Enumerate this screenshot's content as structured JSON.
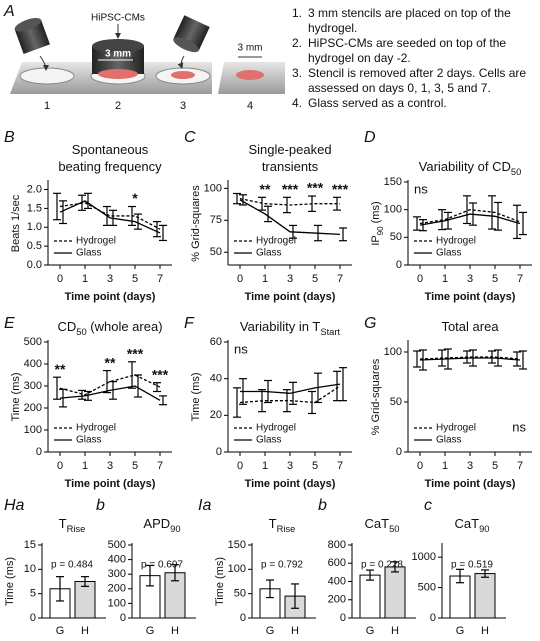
{
  "schematic": {
    "label": "A",
    "cells_label": "HiPSC-CMs",
    "stencil_size": "3 mm",
    "piece_size": "3 mm",
    "dish_numbers": [
      "1",
      "2",
      "3",
      "4"
    ],
    "steps": [
      {
        "number": "1.",
        "text": "3 mm stencils are placed on top of the hydrogel."
      },
      {
        "number": "2.",
        "text": "HiPSC-CMs are seeded on top of the hydrogel on day -2."
      },
      {
        "number": "3.",
        "text": "Stencil is removed after 2 days. Cells are assessed on days 0, 1, 3, 5 and 7."
      },
      {
        "number": "4.",
        "text": "Glass served as a control."
      }
    ]
  },
  "chart_data": [
    {
      "type": "line",
      "label": "B",
      "title": [
        [
          {
            "text": "Spontaneous"
          }
        ],
        [
          {
            "text": "beating frequency"
          }
        ]
      ],
      "ylabel": [
        {
          "text": "Beats 1/sec"
        }
      ],
      "xlabel": "Time point (days)",
      "categories": [
        "0",
        "1",
        "3",
        "5",
        "7"
      ],
      "ylim": [
        0,
        2.2
      ],
      "yticks": [
        {
          "value": 0,
          "label": "0.0"
        },
        {
          "value": 0.5,
          "label": "0.5"
        },
        {
          "value": 1,
          "label": "1.0"
        },
        {
          "value": 1.5,
          "label": "1.5"
        },
        {
          "value": 2,
          "label": "2.0"
        }
      ],
      "legend": "lower left",
      "series": [
        {
          "name": "Hydrogel",
          "color": "#000000",
          "linestyle": "dashed",
          "values": [
            1.55,
            1.65,
            1.3,
            1.3,
            0.95
          ],
          "errors": [
            0.35,
            0.2,
            0.25,
            0.25,
            0.2
          ]
        },
        {
          "name": "Glass",
          "color": "#000000",
          "linestyle": "solid",
          "values": [
            1.4,
            1.7,
            1.25,
            1.15,
            0.85
          ],
          "errors": [
            0.3,
            0.2,
            0.2,
            0.2,
            0.2
          ]
        }
      ],
      "annotations": [
        {
          "text": "*",
          "x": "5"
        }
      ]
    },
    {
      "type": "line",
      "label": "C",
      "title": [
        [
          {
            "text": "Single-peaked"
          }
        ],
        [
          {
            "text": "transients"
          }
        ]
      ],
      "ylabel": [
        {
          "text": "% Grid-squares"
        }
      ],
      "xlabel": "Time point (days)",
      "categories": [
        "0",
        "1",
        "3",
        "5",
        "7"
      ],
      "ylim": [
        40,
        105
      ],
      "yticks": [
        50,
        75,
        100
      ],
      "legend": "lower left",
      "series": [
        {
          "name": "Hydrogel",
          "color": "#000000",
          "linestyle": "dashed",
          "values": [
            92,
            88,
            87,
            88,
            88
          ],
          "errors": [
            4,
            5,
            6,
            6,
            5
          ]
        },
        {
          "name": "Glass",
          "color": "#000000",
          "linestyle": "solid",
          "values": [
            91,
            80,
            66,
            65,
            64
          ],
          "errors": [
            4,
            6,
            5,
            6,
            5
          ]
        }
      ],
      "annotations": [
        {
          "text": "**",
          "x": "1"
        },
        {
          "text": "***",
          "x": "3"
        },
        {
          "text": "***",
          "x": "5"
        },
        {
          "text": "***",
          "x": "7"
        }
      ]
    },
    {
      "type": "line",
      "label": "D",
      "title": [
        [
          {
            "text": "Variability of CD"
          },
          {
            "text": "50",
            "sub": true
          }
        ]
      ],
      "ylabel": [
        {
          "text": "IP"
        },
        {
          "text": "90",
          "sub": true
        },
        {
          "text": " (ms)"
        }
      ],
      "xlabel": "Time point (days)",
      "categories": [
        "0",
        "1",
        "3",
        "5",
        "7"
      ],
      "ylim": [
        0,
        150
      ],
      "yticks": [
        0,
        50,
        100,
        150
      ],
      "legend": "lower left",
      "series": [
        {
          "name": "Hydrogel",
          "color": "#000000",
          "linestyle": "dashed",
          "values": [
            75,
            82,
            100,
            95,
            78
          ],
          "errors": [
            12,
            18,
            25,
            30,
            30
          ]
        },
        {
          "name": "Glass",
          "color": "#000000",
          "linestyle": "solid",
          "values": [
            72,
            80,
            92,
            88,
            75
          ],
          "errors": [
            10,
            15,
            20,
            25,
            20
          ]
        }
      ],
      "annotations": [
        {
          "text": "ns",
          "corner": "upper left"
        }
      ]
    },
    {
      "type": "line",
      "label": "E",
      "title": [
        [
          {
            "text": "CD"
          },
          {
            "text": "50",
            "sub": true
          },
          {
            "text": " (whole area)"
          }
        ]
      ],
      "ylabel": [
        {
          "text": "Time (ms)"
        }
      ],
      "xlabel": "Time point (days)",
      "categories": [
        "0",
        "1",
        "3",
        "5",
        "7"
      ],
      "ylim": [
        0,
        500
      ],
      "yticks": [
        0,
        100,
        200,
        300,
        400,
        500
      ],
      "legend": "lower left",
      "series": [
        {
          "name": "Hydrogel",
          "color": "#000000",
          "linestyle": "dashed",
          "values": [
            290,
            260,
            320,
            350,
            295
          ],
          "errors": [
            50,
            20,
            50,
            60,
            20
          ]
        },
        {
          "name": "Glass",
          "color": "#000000",
          "linestyle": "solid",
          "values": [
            245,
            255,
            280,
            300,
            235
          ],
          "errors": [
            40,
            20,
            40,
            50,
            20
          ]
        }
      ],
      "annotations": [
        {
          "text": "**",
          "x": "0"
        },
        {
          "text": "**",
          "x": "3"
        },
        {
          "text": "***",
          "x": "5"
        },
        {
          "text": "***",
          "x": "7"
        }
      ]
    },
    {
      "type": "line",
      "label": "F",
      "title": [
        [
          {
            "text": "Variability in T"
          },
          {
            "text": "Start",
            "sub": true
          }
        ]
      ],
      "ylabel": [
        {
          "text": "Time (ms)"
        }
      ],
      "xlabel": "Time point (days)",
      "categories": [
        "0",
        "1",
        "3",
        "5",
        "7"
      ],
      "ylim": [
        0,
        60
      ],
      "yticks": [
        0,
        20,
        40,
        60
      ],
      "legend": "lower left",
      "series": [
        {
          "name": "Hydrogel",
          "color": "#000000",
          "linestyle": "dashed",
          "values": [
            27,
            28,
            28,
            27,
            36
          ],
          "errors": [
            8,
            6,
            6,
            6,
            8
          ]
        },
        {
          "name": "Glass",
          "color": "#000000",
          "linestyle": "solid",
          "values": [
            33,
            33,
            32,
            35,
            37
          ],
          "errors": [
            7,
            6,
            6,
            8,
            9
          ]
        }
      ],
      "annotations": [
        {
          "text": "ns",
          "corner": "upper left"
        }
      ]
    },
    {
      "type": "line",
      "label": "G",
      "title": [
        [
          {
            "text": "Total area"
          }
        ]
      ],
      "ylabel": [
        {
          "text": "% Grid-squares"
        }
      ],
      "xlabel": "Time point (days)",
      "categories": [
        "0",
        "1",
        "3",
        "5",
        "7"
      ],
      "ylim": [
        0,
        110
      ],
      "yticks": [
        0,
        50,
        100
      ],
      "legend": "lower left",
      "series": [
        {
          "name": "Hydrogel",
          "color": "#000000",
          "linestyle": "dashed",
          "values": [
            93,
            94,
            95,
            95,
            93
          ],
          "errors": [
            8,
            8,
            6,
            6,
            7
          ]
        },
        {
          "name": "Glass",
          "color": "#000000",
          "linestyle": "solid",
          "values": [
            92,
            93,
            94,
            94,
            92
          ],
          "errors": [
            10,
            10,
            8,
            8,
            9
          ]
        }
      ],
      "annotations": [
        {
          "text": "ns",
          "corner": "lower right"
        }
      ]
    },
    {
      "type": "bar",
      "label": "Ha",
      "title": [
        [
          {
            "text": "T"
          },
          {
            "text": "Rise",
            "sub": true
          }
        ]
      ],
      "ylabel": [
        {
          "text": "Time (ms)"
        }
      ],
      "categories": [
        "G",
        "H"
      ],
      "colors": [
        "#ffffff",
        "#d9d9d9"
      ],
      "values": [
        6,
        7.5
      ],
      "errors": [
        2.5,
        1
      ],
      "ylim": [
        0,
        15
      ],
      "yticks": [
        0,
        5,
        10,
        15
      ],
      "annotation": "p = 0.484"
    },
    {
      "type": "bar",
      "label": "b",
      "title": [
        [
          {
            "text": "APD"
          },
          {
            "text": "90",
            "sub": true
          }
        ]
      ],
      "categories": [
        "G",
        "H"
      ],
      "colors": [
        "#ffffff",
        "#d9d9d9"
      ],
      "values": [
        290,
        310
      ],
      "errors": [
        70,
        55
      ],
      "ylim": [
        0,
        500
      ],
      "yticks": [
        0,
        100,
        200,
        300,
        400,
        500
      ],
      "annotation": "p = 0.697"
    },
    {
      "type": "bar",
      "label": "Ia",
      "title": [
        [
          {
            "text": "T"
          },
          {
            "text": "Rise",
            "sub": true
          }
        ]
      ],
      "ylabel": [
        {
          "text": "Time (ms)"
        }
      ],
      "categories": [
        "G",
        "H"
      ],
      "colors": [
        "#ffffff",
        "#d9d9d9"
      ],
      "values": [
        60,
        45
      ],
      "errors": [
        18,
        25
      ],
      "ylim": [
        0,
        150
      ],
      "yticks": [
        0,
        50,
        100,
        150
      ],
      "annotation": "p = 0.792"
    },
    {
      "type": "bar",
      "label": "b",
      "title": [
        [
          {
            "text": "CaT"
          },
          {
            "text": "50",
            "sub": true
          }
        ]
      ],
      "categories": [
        "G",
        "H"
      ],
      "colors": [
        "#ffffff",
        "#d9d9d9"
      ],
      "values": [
        470,
        560
      ],
      "errors": [
        55,
        55
      ],
      "ylim": [
        0,
        800
      ],
      "yticks": [
        0,
        200,
        400,
        600,
        800
      ],
      "annotation": "p = 0.228"
    },
    {
      "type": "bar",
      "label": "c",
      "title": [
        [
          {
            "text": "CaT"
          },
          {
            "text": "90",
            "sub": true
          }
        ]
      ],
      "categories": [
        "G",
        "H"
      ],
      "colors": [
        "#ffffff",
        "#d9d9d9"
      ],
      "values": [
        690,
        730
      ],
      "errors": [
        110,
        60
      ],
      "ylim": [
        0,
        1200
      ],
      "yticks": [
        0,
        500,
        1000
      ],
      "annotation": "p = 0.519"
    }
  ]
}
